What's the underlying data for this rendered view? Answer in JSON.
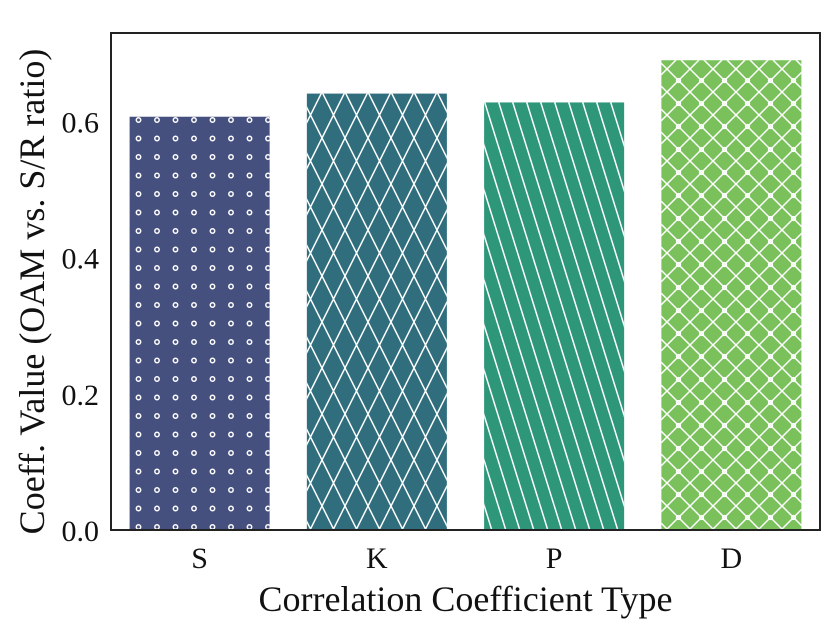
{
  "chart_data": {
    "type": "bar",
    "title": "",
    "xlabel": "Correlation Coefficient Type",
    "ylabel": "Coeff. Value (OAM vs. S/R ratio)",
    "categories": [
      "S",
      "K",
      "P",
      "D"
    ],
    "values": [
      0.607,
      0.641,
      0.628,
      0.69
    ],
    "ylim": [
      0,
      0.73
    ],
    "yticks": [
      0.0,
      0.2,
      0.4,
      0.6
    ],
    "ytick_labels": [
      "0.0",
      "0.2",
      "0.4",
      "0.6"
    ],
    "grid": false,
    "bar_colors": [
      "#46507e",
      "#306e7e",
      "#2e977a",
      "#7ac15c"
    ],
    "bar_patterns": [
      "dots",
      "crosshatch",
      "diagonal",
      "diamond-dots"
    ]
  }
}
